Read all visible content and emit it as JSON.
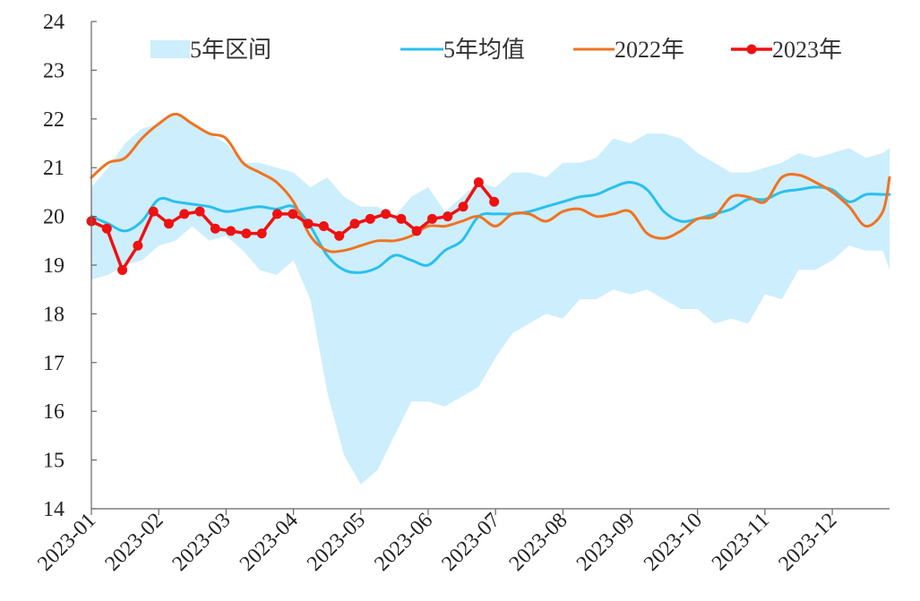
{
  "chart_data": {
    "type": "line",
    "title": "",
    "xlabel": "",
    "ylabel": "",
    "ylim": [
      14,
      24
    ],
    "yticks": [
      14,
      15,
      16,
      17,
      18,
      19,
      20,
      21,
      22,
      23,
      24
    ],
    "xlim": [
      0,
      11.85
    ],
    "categories": [
      "2023-01",
      "2023-02",
      "2023-03",
      "2023-04",
      "2023-05",
      "2023-06",
      "2023-07",
      "2023-08",
      "2023-09",
      "2023-10",
      "2023-11",
      "2023-12"
    ],
    "legend_position": "top",
    "colors": {
      "range_fill": "#cdeefc",
      "avg": "#29c0ee",
      "y2022": "#f07320",
      "y2023": "#ee1111"
    },
    "series": [
      {
        "name": "5年区间",
        "kind": "band",
        "x": [
          0,
          0.25,
          0.5,
          0.75,
          1.0,
          1.25,
          1.5,
          1.75,
          2.0,
          2.25,
          2.5,
          2.75,
          3.0,
          3.25,
          3.5,
          3.75,
          4.0,
          4.25,
          4.5,
          4.75,
          5.0,
          5.25,
          5.5,
          5.75,
          6.0,
          6.25,
          6.5,
          6.75,
          7.0,
          7.25,
          7.5,
          7.75,
          8.0,
          8.25,
          8.5,
          8.75,
          9.0,
          9.25,
          9.5,
          9.75,
          10.0,
          10.25,
          10.5,
          10.75,
          11.0,
          11.25,
          11.5,
          11.75,
          11.85
        ],
        "high": [
          20.6,
          21.0,
          21.5,
          21.8,
          21.9,
          22.1,
          21.9,
          21.7,
          21.5,
          21.1,
          21.1,
          21.0,
          20.9,
          20.6,
          20.8,
          20.4,
          20.2,
          20.2,
          20.0,
          20.4,
          20.6,
          20.1,
          20.4,
          20.7,
          20.6,
          20.9,
          20.9,
          20.8,
          21.1,
          21.1,
          21.2,
          21.6,
          21.5,
          21.7,
          21.7,
          21.6,
          21.3,
          21.1,
          20.9,
          20.9,
          21.0,
          21.1,
          21.3,
          21.2,
          21.3,
          21.4,
          21.2,
          21.3,
          21.4
        ],
        "low": [
          18.7,
          18.8,
          19.0,
          19.1,
          19.4,
          19.5,
          19.8,
          19.5,
          19.6,
          19.3,
          18.9,
          18.8,
          19.1,
          18.3,
          16.4,
          15.1,
          14.5,
          14.8,
          15.5,
          16.2,
          16.2,
          16.1,
          16.3,
          16.5,
          17.1,
          17.6,
          17.8,
          18.0,
          17.9,
          18.3,
          18.3,
          18.5,
          18.4,
          18.5,
          18.3,
          18.1,
          18.1,
          17.8,
          17.9,
          17.8,
          18.4,
          18.3,
          18.9,
          18.9,
          19.1,
          19.4,
          19.3,
          19.3,
          18.9
        ]
      },
      {
        "name": "5年均值",
        "kind": "line",
        "x": [
          0,
          0.25,
          0.5,
          0.75,
          1.0,
          1.25,
          1.5,
          1.75,
          2.0,
          2.25,
          2.5,
          2.75,
          3.0,
          3.25,
          3.5,
          3.75,
          4.0,
          4.25,
          4.5,
          4.75,
          5.0,
          5.25,
          5.5,
          5.75,
          6.0,
          6.25,
          6.5,
          6.75,
          7.0,
          7.25,
          7.5,
          7.75,
          8.0,
          8.25,
          8.5,
          8.75,
          9.0,
          9.25,
          9.5,
          9.75,
          10.0,
          10.25,
          10.5,
          10.75,
          11.0,
          11.25,
          11.5,
          11.75,
          11.85
        ],
        "values": [
          20.0,
          19.85,
          19.7,
          19.9,
          20.35,
          20.3,
          20.25,
          20.2,
          20.1,
          20.15,
          20.2,
          20.15,
          20.2,
          19.8,
          19.2,
          18.9,
          18.85,
          18.95,
          19.2,
          19.1,
          19.0,
          19.3,
          19.5,
          20.0,
          20.05,
          20.05,
          20.1,
          20.2,
          20.3,
          20.4,
          20.45,
          20.6,
          20.7,
          20.55,
          20.1,
          19.9,
          19.95,
          20.05,
          20.15,
          20.35,
          20.35,
          20.5,
          20.55,
          20.6,
          20.55,
          20.3,
          20.45,
          20.45,
          20.45
        ]
      },
      {
        "name": "2022年",
        "kind": "line",
        "x": [
          0,
          0.25,
          0.5,
          0.75,
          1.0,
          1.25,
          1.5,
          1.75,
          2.0,
          2.25,
          2.5,
          2.75,
          3.0,
          3.25,
          3.5,
          3.75,
          4.0,
          4.25,
          4.5,
          4.75,
          5.0,
          5.25,
          5.5,
          5.75,
          6.0,
          6.25,
          6.5,
          6.75,
          7.0,
          7.25,
          7.5,
          7.75,
          8.0,
          8.25,
          8.5,
          8.75,
          9.0,
          9.25,
          9.5,
          9.75,
          10.0,
          10.25,
          10.5,
          10.75,
          11.0,
          11.25,
          11.5,
          11.75,
          11.85
        ],
        "values": [
          20.8,
          21.1,
          21.2,
          21.6,
          21.9,
          22.1,
          21.9,
          21.7,
          21.6,
          21.1,
          20.9,
          20.7,
          20.3,
          19.6,
          19.3,
          19.3,
          19.4,
          19.5,
          19.5,
          19.6,
          19.8,
          19.8,
          19.9,
          20.0,
          19.8,
          20.05,
          20.05,
          19.9,
          20.1,
          20.15,
          20.0,
          20.05,
          20.1,
          19.65,
          19.55,
          19.7,
          19.95,
          20.0,
          20.4,
          20.4,
          20.3,
          20.8,
          20.85,
          20.7,
          20.5,
          20.2,
          19.8,
          20.1,
          20.8
        ]
      },
      {
        "name": "2023年",
        "kind": "line-marker",
        "x": [
          0,
          0.23,
          0.46,
          0.69,
          0.92,
          1.15,
          1.38,
          1.61,
          1.84,
          2.07,
          2.3,
          2.53,
          2.76,
          2.99,
          3.22,
          3.45,
          3.68,
          3.91,
          4.14,
          4.37,
          4.6,
          4.83,
          5.06,
          5.29,
          5.52,
          5.75,
          5.98
        ],
        "values": [
          19.9,
          19.75,
          18.9,
          19.4,
          20.1,
          19.85,
          20.05,
          20.1,
          19.75,
          19.7,
          19.65,
          19.65,
          20.05,
          20.05,
          19.85,
          19.8,
          19.6,
          19.85,
          19.95,
          20.05,
          19.95,
          19.7,
          19.95,
          20.0,
          20.2,
          20.7,
          20.3
        ]
      }
    ]
  }
}
